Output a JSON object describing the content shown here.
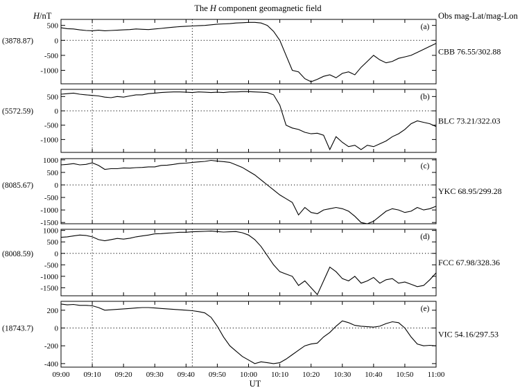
{
  "title_prefix": "The ",
  "title_italic": "H",
  "title_suffix": " component geomagnetic field",
  "ylabel_italic": "H",
  "ylabel_suffix": "/nT",
  "obs_header": "Obs mag-Lat/mag-Lon",
  "xlabel": "UT",
  "colors": {
    "line": "#000000",
    "background": "#ffffff"
  },
  "chart_data": [
    {
      "type": "line",
      "panel": "(a)",
      "baseline": "(3878.87)",
      "station": "CBB 76.55/302.88",
      "ylim": [
        -1450,
        700
      ],
      "yticks": [
        500,
        0,
        -500,
        -1000
      ],
      "x": [
        "09:00",
        "09:02",
        "09:04",
        "09:06",
        "09:08",
        "09:10",
        "09:12",
        "09:14",
        "09:16",
        "09:18",
        "09:20",
        "09:22",
        "09:24",
        "09:26",
        "09:28",
        "09:30",
        "09:32",
        "09:34",
        "09:36",
        "09:38",
        "09:40",
        "09:42",
        "09:44",
        "09:46",
        "09:48",
        "09:50",
        "09:52",
        "09:54",
        "09:56",
        "09:58",
        "10:00",
        "10:02",
        "10:04",
        "10:06",
        "10:08",
        "10:10",
        "10:12",
        "10:14",
        "10:16",
        "10:18",
        "10:20",
        "10:22",
        "10:24",
        "10:26",
        "10:28",
        "10:30",
        "10:32",
        "10:34",
        "10:36",
        "10:38",
        "10:40",
        "10:42",
        "10:44",
        "10:46",
        "10:48",
        "10:50",
        "10:52",
        "10:54",
        "10:56",
        "10:58",
        "11:00"
      ],
      "y": [
        420,
        390,
        380,
        350,
        330,
        320,
        340,
        320,
        330,
        340,
        350,
        360,
        380,
        370,
        360,
        380,
        400,
        420,
        440,
        460,
        470,
        480,
        490,
        500,
        520,
        540,
        550,
        560,
        580,
        590,
        600,
        600,
        580,
        500,
        300,
        0,
        -500,
        -1000,
        -1050,
        -1280,
        -1380,
        -1300,
        -1200,
        -1150,
        -1250,
        -1100,
        -1050,
        -1150,
        -900,
        -700,
        -500,
        -650,
        -750,
        -700,
        -600,
        -550,
        -500,
        -400,
        -300,
        -200,
        -100
      ]
    },
    {
      "type": "line",
      "panel": "(b)",
      "baseline": "(5572.59)",
      "station": "BLC 73.21/322.03",
      "ylim": [
        -1450,
        750
      ],
      "yticks": [
        500,
        0,
        -500,
        -1000
      ],
      "x": [
        "09:00",
        "09:02",
        "09:04",
        "09:06",
        "09:08",
        "09:10",
        "09:12",
        "09:14",
        "09:16",
        "09:18",
        "09:20",
        "09:22",
        "09:24",
        "09:26",
        "09:28",
        "09:30",
        "09:32",
        "09:34",
        "09:36",
        "09:38",
        "09:40",
        "09:42",
        "09:44",
        "09:46",
        "09:48",
        "09:50",
        "09:52",
        "09:54",
        "09:56",
        "09:58",
        "10:00",
        "10:02",
        "10:04",
        "10:06",
        "10:08",
        "10:10",
        "10:12",
        "10:14",
        "10:16",
        "10:18",
        "10:20",
        "10:22",
        "10:24",
        "10:26",
        "10:28",
        "10:30",
        "10:32",
        "10:34",
        "10:36",
        "10:38",
        "10:40",
        "10:42",
        "10:44",
        "10:46",
        "10:48",
        "10:50",
        "10:52",
        "10:54",
        "10:56",
        "10:58",
        "11:00"
      ],
      "y": [
        580,
        600,
        620,
        580,
        560,
        540,
        520,
        480,
        460,
        500,
        480,
        520,
        560,
        560,
        600,
        620,
        640,
        650,
        660,
        660,
        650,
        640,
        660,
        650,
        640,
        650,
        640,
        660,
        660,
        670,
        670,
        660,
        650,
        640,
        560,
        200,
        -500,
        -600,
        -650,
        -750,
        -800,
        -780,
        -850,
        -1350,
        -900,
        -1100,
        -1250,
        -1200,
        -1350,
        -1200,
        -1250,
        -1150,
        -1050,
        -900,
        -800,
        -650,
        -450,
        -350,
        -400,
        -450,
        -550
      ]
    },
    {
      "type": "line",
      "panel": "(c)",
      "baseline": "(8085.67)",
      "station": "YKC 68.95/299.28",
      "ylim": [
        -1550,
        1050
      ],
      "yticks": [
        1000,
        500,
        0,
        -500,
        -1000,
        -1500
      ],
      "x": [
        "09:00",
        "09:02",
        "09:04",
        "09:06",
        "09:08",
        "09:10",
        "09:12",
        "09:14",
        "09:16",
        "09:18",
        "09:20",
        "09:22",
        "09:24",
        "09:26",
        "09:28",
        "09:30",
        "09:32",
        "09:34",
        "09:36",
        "09:38",
        "09:40",
        "09:42",
        "09:44",
        "09:46",
        "09:48",
        "09:50",
        "09:52",
        "09:54",
        "09:56",
        "09:58",
        "10:00",
        "10:02",
        "10:04",
        "10:06",
        "10:08",
        "10:10",
        "10:12",
        "10:14",
        "10:16",
        "10:18",
        "10:20",
        "10:22",
        "10:24",
        "10:26",
        "10:28",
        "10:30",
        "10:32",
        "10:34",
        "10:36",
        "10:38",
        "10:40",
        "10:42",
        "10:44",
        "10:46",
        "10:48",
        "10:50",
        "10:52",
        "10:54",
        "10:56",
        "10:58",
        "11:00"
      ],
      "y": [
        800,
        820,
        850,
        800,
        820,
        880,
        780,
        620,
        650,
        650,
        680,
        670,
        690,
        700,
        720,
        720,
        780,
        790,
        820,
        860,
        870,
        900,
        920,
        940,
        980,
        950,
        930,
        900,
        800,
        700,
        550,
        400,
        200,
        0,
        -200,
        -400,
        -550,
        -700,
        -1200,
        -900,
        -1100,
        -1150,
        -1000,
        -950,
        -900,
        -950,
        -1050,
        -1250,
        -1500,
        -1550,
        -1450,
        -1250,
        -1050,
        -950,
        -1000,
        -1100,
        -1050,
        -900,
        -1000,
        -950,
        -850
      ]
    },
    {
      "type": "line",
      "panel": "(d)",
      "baseline": "(8008.59)",
      "station": "FCC 67.98/328.36",
      "ylim": [
        -1850,
        1050
      ],
      "yticks": [
        1000,
        500,
        0,
        -500,
        -1000,
        -1500
      ],
      "x": [
        "09:00",
        "09:02",
        "09:04",
        "09:06",
        "09:08",
        "09:10",
        "09:12",
        "09:14",
        "09:16",
        "09:18",
        "09:20",
        "09:22",
        "09:24",
        "09:26",
        "09:28",
        "09:30",
        "09:32",
        "09:34",
        "09:36",
        "09:38",
        "09:40",
        "09:42",
        "09:44",
        "09:46",
        "09:48",
        "09:50",
        "09:52",
        "09:54",
        "09:56",
        "09:58",
        "10:00",
        "10:02",
        "10:04",
        "10:06",
        "10:08",
        "10:10",
        "10:12",
        "10:14",
        "10:16",
        "10:18",
        "10:20",
        "10:22",
        "10:24",
        "10:26",
        "10:28",
        "10:30",
        "10:32",
        "10:34",
        "10:36",
        "10:38",
        "10:40",
        "10:42",
        "10:44",
        "10:46",
        "10:48",
        "10:50",
        "10:52",
        "10:54",
        "10:56",
        "10:58",
        "11:00"
      ],
      "y": [
        700,
        720,
        760,
        800,
        780,
        720,
        600,
        550,
        600,
        650,
        620,
        660,
        720,
        760,
        800,
        850,
        860,
        880,
        900,
        920,
        920,
        940,
        950,
        960,
        970,
        950,
        930,
        940,
        950,
        900,
        800,
        600,
        300,
        -100,
        -500,
        -800,
        -900,
        -1000,
        -1400,
        -1200,
        -1500,
        -1800,
        -1200,
        -600,
        -800,
        -1100,
        -1200,
        -1000,
        -1300,
        -1200,
        -1050,
        -1300,
        -1150,
        -1100,
        -1300,
        -1250,
        -1350,
        -1450,
        -1400,
        -1150,
        -850
      ]
    },
    {
      "type": "line",
      "panel": "(e)",
      "baseline": "(18743.7)",
      "station": "VIC 54.16/297.53",
      "ylim": [
        -440,
        300
      ],
      "yticks": [
        200,
        0,
        -200,
        -400
      ],
      "x": [
        "09:00",
        "09:02",
        "09:04",
        "09:06",
        "09:08",
        "09:10",
        "09:12",
        "09:14",
        "09:16",
        "09:18",
        "09:20",
        "09:22",
        "09:24",
        "09:26",
        "09:28",
        "09:30",
        "09:32",
        "09:34",
        "09:36",
        "09:38",
        "09:40",
        "09:42",
        "09:44",
        "09:46",
        "09:48",
        "09:50",
        "09:52",
        "09:54",
        "09:56",
        "09:58",
        "10:00",
        "10:02",
        "10:04",
        "10:06",
        "10:08",
        "10:10",
        "10:12",
        "10:14",
        "10:16",
        "10:18",
        "10:20",
        "10:22",
        "10:24",
        "10:26",
        "10:28",
        "10:30",
        "10:32",
        "10:34",
        "10:36",
        "10:38",
        "10:40",
        "10:42",
        "10:44",
        "10:46",
        "10:48",
        "10:50",
        "10:52",
        "10:54",
        "10:56",
        "10:58",
        "11:00"
      ],
      "y": [
        270,
        260,
        265,
        255,
        255,
        250,
        230,
        200,
        205,
        210,
        215,
        220,
        225,
        230,
        230,
        225,
        220,
        215,
        210,
        205,
        200,
        195,
        185,
        170,
        120,
        20,
        -100,
        -200,
        -260,
        -320,
        -360,
        -400,
        -380,
        -390,
        -400,
        -390,
        -350,
        -300,
        -250,
        -200,
        -180,
        -170,
        -100,
        -50,
        20,
        80,
        60,
        30,
        20,
        15,
        10,
        20,
        50,
        70,
        60,
        0,
        -100,
        -180,
        -200,
        -195,
        -200
      ]
    }
  ],
  "xaxis": {
    "range": [
      "09:00",
      "11:00"
    ],
    "ticks": [
      "09:00",
      "09:10",
      "09:20",
      "09:30",
      "09:40",
      "09:50",
      "10:00",
      "10:10",
      "10:20",
      "10:30",
      "10:40",
      "10:50",
      "11:00"
    ],
    "reference_lines": [
      "09:10",
      "09:42"
    ]
  }
}
